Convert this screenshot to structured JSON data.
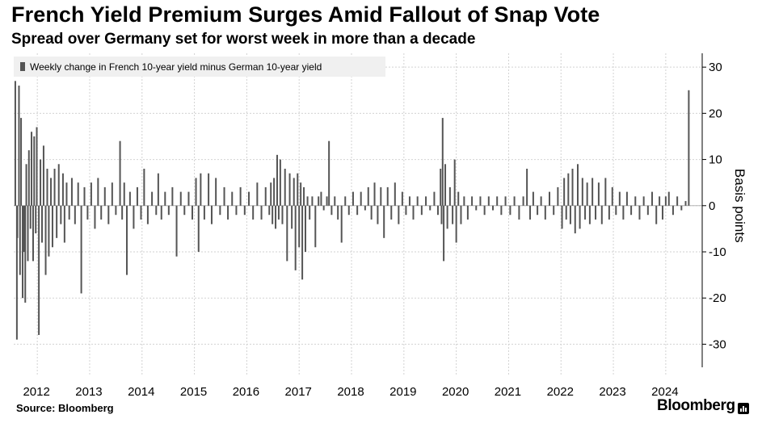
{
  "header": {
    "title": "French Yield Premium Surges Amid Fallout of Snap Vote",
    "subtitle": "Spread over Germany set for worst week in more than a decade"
  },
  "footer": {
    "source": "Source: Bloomberg",
    "brand": "Bloomberg"
  },
  "colors": {
    "bar": "#555555",
    "grid": "#d2d2d2",
    "axis": "#000000",
    "legend_bg": "#f0f0f0"
  },
  "chart_data": {
    "type": "bar",
    "title": "French Yield Premium Surges Amid Fallout of Snap Vote",
    "subtitle": "Spread over Germany set for worst week in more than a decade",
    "legend": [
      "Weekly change in French 10-year yield minus German 10-year yield"
    ],
    "legend_position": "top-left",
    "ylabel": "Basis points",
    "ylim": [
      -35,
      33
    ],
    "yticks": [
      30,
      20,
      10,
      0,
      -10,
      -20,
      -30
    ],
    "y_axis_side": "right",
    "grid": true,
    "x_start": 2011.55,
    "x_end": 2024.65,
    "xticks": [
      {
        "label": "2012",
        "at": 2012.0
      },
      {
        "label": "2013",
        "at": 2013.0
      },
      {
        "label": "2014",
        "at": 2014.0
      },
      {
        "label": "2015",
        "at": 2015.0
      },
      {
        "label": "2016",
        "at": 2016.0
      },
      {
        "label": "2017",
        "at": 2017.0
      },
      {
        "label": "2018",
        "at": 2018.0
      },
      {
        "label": "2019",
        "at": 2019.0
      },
      {
        "label": "2020",
        "at": 2020.0
      },
      {
        "label": "2021",
        "at": 2021.0
      },
      {
        "label": "2022",
        "at": 2022.0
      },
      {
        "label": "2023",
        "at": 2023.0
      },
      {
        "label": "2024",
        "at": 2024.0
      }
    ],
    "series": [
      {
        "name": "Weekly change in French 10-year yield minus German 10-year yield",
        "points": [
          {
            "x": 2011.58,
            "y": 27
          },
          {
            "x": 2011.61,
            "y": -29
          },
          {
            "x": 2011.62,
            "y": -7
          },
          {
            "x": 2011.65,
            "y": 26
          },
          {
            "x": 2011.67,
            "y": -15
          },
          {
            "x": 2011.69,
            "y": 19
          },
          {
            "x": 2011.72,
            "y": -20
          },
          {
            "x": 2011.75,
            "y": -10
          },
          {
            "x": 2011.77,
            "y": -21
          },
          {
            "x": 2011.79,
            "y": 9
          },
          {
            "x": 2011.82,
            "y": -12
          },
          {
            "x": 2011.84,
            "y": 12
          },
          {
            "x": 2011.87,
            "y": -5
          },
          {
            "x": 2011.89,
            "y": 16
          },
          {
            "x": 2011.92,
            "y": -12
          },
          {
            "x": 2011.94,
            "y": 15
          },
          {
            "x": 2011.97,
            "y": -6
          },
          {
            "x": 2011.99,
            "y": 17
          },
          {
            "x": 2012.03,
            "y": -28
          },
          {
            "x": 2012.06,
            "y": 10
          },
          {
            "x": 2012.09,
            "y": -8
          },
          {
            "x": 2012.12,
            "y": 13
          },
          {
            "x": 2012.16,
            "y": -15
          },
          {
            "x": 2012.19,
            "y": 8
          },
          {
            "x": 2012.22,
            "y": -11
          },
          {
            "x": 2012.26,
            "y": 6
          },
          {
            "x": 2012.29,
            "y": -9
          },
          {
            "x": 2012.33,
            "y": 8
          },
          {
            "x": 2012.37,
            "y": -7
          },
          {
            "x": 2012.41,
            "y": 9
          },
          {
            "x": 2012.45,
            "y": -4
          },
          {
            "x": 2012.49,
            "y": 7
          },
          {
            "x": 2012.52,
            "y": -8
          },
          {
            "x": 2012.56,
            "y": 5
          },
          {
            "x": 2012.61,
            "y": -3
          },
          {
            "x": 2012.66,
            "y": 6
          },
          {
            "x": 2012.72,
            "y": -4
          },
          {
            "x": 2012.78,
            "y": 5
          },
          {
            "x": 2012.84,
            "y": -19
          },
          {
            "x": 2012.9,
            "y": 4
          },
          {
            "x": 2012.96,
            "y": -3
          },
          {
            "x": 2013.03,
            "y": 5
          },
          {
            "x": 2013.1,
            "y": -5
          },
          {
            "x": 2013.16,
            "y": 6
          },
          {
            "x": 2013.22,
            "y": -3
          },
          {
            "x": 2013.29,
            "y": 4
          },
          {
            "x": 2013.36,
            "y": -4
          },
          {
            "x": 2013.43,
            "y": 5
          },
          {
            "x": 2013.5,
            "y": -2
          },
          {
            "x": 2013.58,
            "y": 14
          },
          {
            "x": 2013.62,
            "y": -3
          },
          {
            "x": 2013.66,
            "y": 5
          },
          {
            "x": 2013.71,
            "y": -15
          },
          {
            "x": 2013.77,
            "y": 3
          },
          {
            "x": 2013.84,
            "y": -5
          },
          {
            "x": 2013.91,
            "y": 4
          },
          {
            "x": 2013.98,
            "y": -3
          },
          {
            "x": 2014.04,
            "y": 8
          },
          {
            "x": 2014.11,
            "y": -4
          },
          {
            "x": 2014.19,
            "y": 3
          },
          {
            "x": 2014.27,
            "y": -2
          },
          {
            "x": 2014.31,
            "y": 7
          },
          {
            "x": 2014.37,
            "y": -3
          },
          {
            "x": 2014.44,
            "y": 3
          },
          {
            "x": 2014.51,
            "y": -2
          },
          {
            "x": 2014.58,
            "y": 4
          },
          {
            "x": 2014.66,
            "y": -11
          },
          {
            "x": 2014.74,
            "y": 3
          },
          {
            "x": 2014.81,
            "y": -2
          },
          {
            "x": 2014.89,
            "y": 3
          },
          {
            "x": 2014.96,
            "y": -3
          },
          {
            "x": 2015.03,
            "y": 6
          },
          {
            "x": 2015.08,
            "y": -10
          },
          {
            "x": 2015.12,
            "y": 7
          },
          {
            "x": 2015.19,
            "y": -3
          },
          {
            "x": 2015.27,
            "y": 7
          },
          {
            "x": 2015.33,
            "y": -4
          },
          {
            "x": 2015.41,
            "y": 6
          },
          {
            "x": 2015.49,
            "y": -2
          },
          {
            "x": 2015.57,
            "y": 4
          },
          {
            "x": 2015.64,
            "y": -3
          },
          {
            "x": 2015.72,
            "y": 3
          },
          {
            "x": 2015.8,
            "y": -2
          },
          {
            "x": 2015.88,
            "y": 4
          },
          {
            "x": 2015.96,
            "y": -2
          },
          {
            "x": 2016.04,
            "y": 3
          },
          {
            "x": 2016.12,
            "y": -3
          },
          {
            "x": 2016.2,
            "y": 5
          },
          {
            "x": 2016.28,
            "y": -3
          },
          {
            "x": 2016.36,
            "y": 4
          },
          {
            "x": 2016.43,
            "y": -2
          },
          {
            "x": 2016.46,
            "y": 5
          },
          {
            "x": 2016.49,
            "y": -4
          },
          {
            "x": 2016.52,
            "y": 6
          },
          {
            "x": 2016.55,
            "y": -5
          },
          {
            "x": 2016.58,
            "y": 11
          },
          {
            "x": 2016.61,
            "y": -3
          },
          {
            "x": 2016.64,
            "y": 10
          },
          {
            "x": 2016.68,
            "y": -4
          },
          {
            "x": 2016.73,
            "y": 8
          },
          {
            "x": 2016.77,
            "y": -12
          },
          {
            "x": 2016.82,
            "y": 7
          },
          {
            "x": 2016.86,
            "y": -5
          },
          {
            "x": 2016.9,
            "y": 6
          },
          {
            "x": 2016.93,
            "y": -14
          },
          {
            "x": 2016.97,
            "y": 7
          },
          {
            "x": 2017.0,
            "y": -9
          },
          {
            "x": 2017.03,
            "y": 5
          },
          {
            "x": 2017.06,
            "y": -16
          },
          {
            "x": 2017.09,
            "y": 4
          },
          {
            "x": 2017.12,
            "y": -10
          },
          {
            "x": 2017.16,
            "y": 2
          },
          {
            "x": 2017.2,
            "y": -3
          },
          {
            "x": 2017.25,
            "y": 2
          },
          {
            "x": 2017.31,
            "y": -9
          },
          {
            "x": 2017.37,
            "y": 2
          },
          {
            "x": 2017.42,
            "y": 3
          },
          {
            "x": 2017.47,
            "y": -1
          },
          {
            "x": 2017.53,
            "y": 2
          },
          {
            "x": 2017.57,
            "y": 14
          },
          {
            "x": 2017.62,
            "y": -2
          },
          {
            "x": 2017.68,
            "y": 2
          },
          {
            "x": 2017.74,
            "y": -3
          },
          {
            "x": 2017.81,
            "y": -8
          },
          {
            "x": 2017.88,
            "y": 2
          },
          {
            "x": 2017.95,
            "y": -2
          },
          {
            "x": 2018.03,
            "y": 3
          },
          {
            "x": 2018.11,
            "y": -2
          },
          {
            "x": 2018.18,
            "y": 3
          },
          {
            "x": 2018.26,
            "y": -1
          },
          {
            "x": 2018.32,
            "y": 4
          },
          {
            "x": 2018.38,
            "y": -3
          },
          {
            "x": 2018.44,
            "y": 5
          },
          {
            "x": 2018.5,
            "y": -4
          },
          {
            "x": 2018.56,
            "y": 4
          },
          {
            "x": 2018.62,
            "y": -7
          },
          {
            "x": 2018.69,
            "y": 4
          },
          {
            "x": 2018.76,
            "y": -3
          },
          {
            "x": 2018.83,
            "y": 5
          },
          {
            "x": 2018.9,
            "y": -4
          },
          {
            "x": 2018.97,
            "y": 3
          },
          {
            "x": 2019.04,
            "y": -2
          },
          {
            "x": 2019.11,
            "y": 2
          },
          {
            "x": 2019.18,
            "y": -3
          },
          {
            "x": 2019.26,
            "y": 2
          },
          {
            "x": 2019.34,
            "y": -2
          },
          {
            "x": 2019.42,
            "y": 2
          },
          {
            "x": 2019.5,
            "y": -1
          },
          {
            "x": 2019.58,
            "y": 3
          },
          {
            "x": 2019.65,
            "y": -2
          },
          {
            "x": 2019.7,
            "y": 8
          },
          {
            "x": 2019.72,
            "y": -4
          },
          {
            "x": 2019.74,
            "y": 19
          },
          {
            "x": 2019.76,
            "y": -12
          },
          {
            "x": 2019.79,
            "y": 9
          },
          {
            "x": 2019.83,
            "y": -5
          },
          {
            "x": 2019.88,
            "y": 4
          },
          {
            "x": 2019.93,
            "y": -4
          },
          {
            "x": 2019.97,
            "y": 10
          },
          {
            "x": 2020.0,
            "y": -8
          },
          {
            "x": 2020.04,
            "y": 3
          },
          {
            "x": 2020.09,
            "y": -4
          },
          {
            "x": 2020.15,
            "y": 2
          },
          {
            "x": 2020.22,
            "y": -3
          },
          {
            "x": 2020.3,
            "y": 2
          },
          {
            "x": 2020.38,
            "y": -1
          },
          {
            "x": 2020.46,
            "y": 2
          },
          {
            "x": 2020.54,
            "y": -2
          },
          {
            "x": 2020.62,
            "y": 2
          },
          {
            "x": 2020.7,
            "y": -1
          },
          {
            "x": 2020.78,
            "y": 2
          },
          {
            "x": 2020.86,
            "y": -2
          },
          {
            "x": 2020.94,
            "y": 2
          },
          {
            "x": 2021.03,
            "y": -2
          },
          {
            "x": 2021.11,
            "y": 2
          },
          {
            "x": 2021.2,
            "y": -3
          },
          {
            "x": 2021.28,
            "y": 2
          },
          {
            "x": 2021.35,
            "y": 8
          },
          {
            "x": 2021.41,
            "y": -3
          },
          {
            "x": 2021.47,
            "y": 3
          },
          {
            "x": 2021.55,
            "y": -2
          },
          {
            "x": 2021.62,
            "y": 2
          },
          {
            "x": 2021.7,
            "y": -3
          },
          {
            "x": 2021.78,
            "y": 3
          },
          {
            "x": 2021.86,
            "y": -2
          },
          {
            "x": 2021.94,
            "y": 4
          },
          {
            "x": 2022.02,
            "y": -5
          },
          {
            "x": 2022.06,
            "y": 6
          },
          {
            "x": 2022.1,
            "y": -3
          },
          {
            "x": 2022.14,
            "y": 7
          },
          {
            "x": 2022.18,
            "y": -4
          },
          {
            "x": 2022.22,
            "y": 8
          },
          {
            "x": 2022.27,
            "y": -6
          },
          {
            "x": 2022.32,
            "y": 9
          },
          {
            "x": 2022.36,
            "y": -5
          },
          {
            "x": 2022.41,
            "y": 6
          },
          {
            "x": 2022.46,
            "y": -3
          },
          {
            "x": 2022.5,
            "y": 5
          },
          {
            "x": 2022.55,
            "y": -4
          },
          {
            "x": 2022.6,
            "y": 6
          },
          {
            "x": 2022.66,
            "y": -3
          },
          {
            "x": 2022.72,
            "y": 5
          },
          {
            "x": 2022.78,
            "y": -4
          },
          {
            "x": 2022.85,
            "y": 6
          },
          {
            "x": 2022.92,
            "y": -3
          },
          {
            "x": 2022.98,
            "y": 4
          },
          {
            "x": 2023.05,
            "y": -2
          },
          {
            "x": 2023.12,
            "y": 3
          },
          {
            "x": 2023.19,
            "y": -3
          },
          {
            "x": 2023.26,
            "y": 3
          },
          {
            "x": 2023.34,
            "y": -2
          },
          {
            "x": 2023.42,
            "y": 2
          },
          {
            "x": 2023.5,
            "y": -3
          },
          {
            "x": 2023.58,
            "y": 2
          },
          {
            "x": 2023.66,
            "y": -2
          },
          {
            "x": 2023.74,
            "y": 3
          },
          {
            "x": 2023.82,
            "y": -4
          },
          {
            "x": 2023.88,
            "y": 2
          },
          {
            "x": 2023.94,
            "y": -3
          },
          {
            "x": 2024.0,
            "y": 2
          },
          {
            "x": 2024.06,
            "y": 3
          },
          {
            "x": 2024.14,
            "y": -2
          },
          {
            "x": 2024.22,
            "y": 2
          },
          {
            "x": 2024.3,
            "y": -1
          },
          {
            "x": 2024.38,
            "y": 1
          },
          {
            "x": 2024.44,
            "y": 25
          }
        ]
      }
    ]
  }
}
